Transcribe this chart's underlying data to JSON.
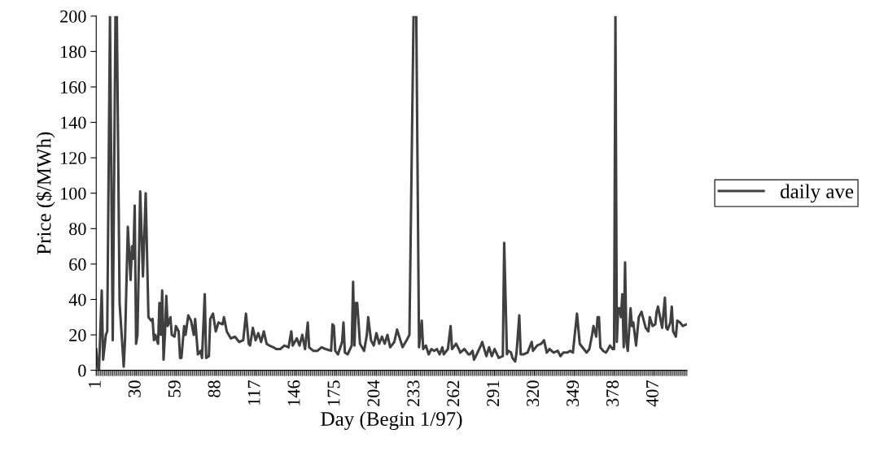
{
  "chart_data": {
    "type": "line",
    "xlabel": "Day (Begin 1/97)",
    "ylabel": "Price ($/MWh)",
    "xlim": [
      1,
      431
    ],
    "xticks": [
      1,
      30,
      59,
      88,
      117,
      146,
      175,
      204,
      233,
      262,
      291,
      320,
      349,
      378,
      407
    ],
    "ylim": [
      0,
      200
    ],
    "yticks": [
      0,
      20,
      40,
      60,
      80,
      100,
      120,
      140,
      160,
      180,
      200
    ],
    "grid": false,
    "legend": "right",
    "marker": "none",
    "line_style": "solid",
    "series": [
      {
        "name": "daily ave",
        "color": "#404040",
        "x": [
          1,
          2,
          3,
          5,
          6,
          8,
          9,
          11,
          13,
          15,
          16,
          18,
          21,
          22,
          24,
          26,
          27,
          28,
          29,
          30,
          31,
          33,
          35,
          37,
          39,
          41,
          42,
          43,
          44,
          46,
          47,
          48,
          49,
          50,
          51,
          52,
          53,
          55,
          56,
          58,
          59,
          61,
          62,
          63,
          65,
          66,
          68,
          70,
          72,
          73,
          75,
          77,
          78,
          80,
          81,
          83,
          84,
          86,
          88,
          90,
          93,
          94,
          96,
          99,
          102,
          105,
          108,
          110,
          112,
          113,
          115,
          117,
          119,
          121,
          123,
          125,
          127,
          130,
          132,
          135,
          138,
          141,
          143,
          144,
          147,
          149,
          151,
          153,
          155,
          156,
          159,
          162,
          165,
          168,
          172,
          173,
          174,
          175,
          177,
          180,
          181,
          182,
          184,
          187,
          188,
          189,
          190,
          191,
          193,
          196,
          198,
          199,
          201,
          203,
          205,
          207,
          209,
          211,
          213,
          215,
          216,
          218,
          220,
          222,
          224,
          227,
          229,
          232,
          234,
          236,
          238,
          239,
          241,
          243,
          245,
          247,
          249,
          251,
          253,
          254,
          257,
          259,
          260,
          263,
          265,
          266,
          269,
          272,
          273,
          275,
          276,
          278,
          281,
          282,
          285,
          287,
          289,
          291,
          294,
          297,
          298,
          300,
          301,
          303,
          304,
          306,
          307,
          309,
          310,
          312,
          315,
          318,
          319,
          322,
          325,
          327,
          329,
          331,
          334,
          337,
          339,
          341,
          344,
          346,
          348,
          351,
          353,
          356,
          358,
          360,
          362,
          363,
          365,
          366,
          367,
          368,
          370,
          372,
          373,
          375,
          377,
          378,
          379,
          380,
          381,
          382,
          383,
          384,
          385,
          386,
          387,
          388,
          390,
          391,
          392,
          394,
          396,
          398,
          399,
          401,
          403,
          404,
          406,
          408,
          409,
          410,
          412,
          413,
          415,
          416,
          417,
          419,
          420,
          421,
          423,
          424,
          426,
          428,
          431
        ],
        "values": [
          12,
          2,
          0,
          45,
          6,
          20,
          22,
          200,
          17,
          200,
          200,
          38,
          2,
          18,
          81,
          51,
          70,
          63,
          93,
          15,
          20,
          101,
          53,
          100,
          30,
          28,
          29,
          17,
          20,
          15,
          38,
          20,
          45,
          6,
          20,
          42,
          25,
          30,
          20,
          19,
          25,
          22,
          7,
          7,
          25,
          20,
          31,
          28,
          20,
          29,
          9,
          11,
          7,
          43,
          7,
          8,
          29,
          32,
          22,
          27,
          26,
          30,
          22,
          18,
          19,
          16,
          17,
          32,
          15,
          14,
          24,
          17,
          21,
          16,
          22,
          15,
          14,
          13,
          12,
          12,
          14,
          13,
          22,
          14,
          18,
          14,
          20,
          12,
          27,
          13,
          11,
          11,
          13,
          12,
          11,
          26,
          25,
          11,
          9,
          16,
          27,
          10,
          9,
          14,
          50,
          14,
          38,
          38,
          15,
          11,
          20,
          30,
          17,
          14,
          21,
          15,
          19,
          15,
          20,
          13,
          14,
          16,
          23,
          18,
          13,
          17,
          20,
          200,
          200,
          13,
          28,
          12,
          14,
          9,
          12,
          11,
          12,
          9,
          13,
          9,
          12,
          25,
          12,
          15,
          12,
          10,
          12,
          9,
          9,
          11,
          6,
          9,
          14,
          16,
          8,
          13,
          8,
          12,
          7,
          8,
          72,
          9,
          11,
          10,
          7,
          5,
          10,
          31,
          9,
          9,
          10,
          16,
          11,
          14,
          15,
          17,
          10,
          12,
          10,
          11,
          8,
          10,
          10,
          11,
          10,
          32,
          15,
          12,
          10,
          12,
          20,
          25,
          19,
          30,
          30,
          13,
          11,
          10,
          11,
          14,
          12,
          12,
          200,
          16,
          35,
          35,
          30,
          43,
          13,
          61,
          16,
          11,
          35,
          25,
          27,
          14,
          30,
          33,
          30,
          24,
          22,
          30,
          25,
          26,
          33,
          36,
          28,
          24,
          41,
          24,
          23,
          27,
          36,
          22,
          19,
          28,
          27,
          25,
          26
        ]
      }
    ]
  }
}
